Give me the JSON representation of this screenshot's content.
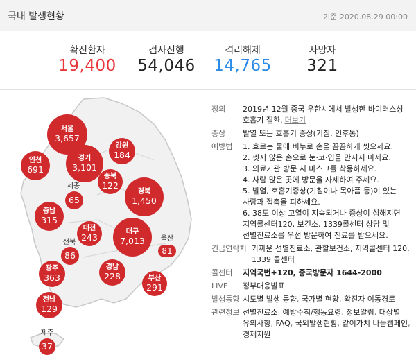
{
  "header": {
    "title": "국내 발생현황",
    "date": "기준 2020.08.29 00:00"
  },
  "stats": [
    {
      "label": "확진환자",
      "value": "19,400"
    },
    {
      "label": "검사진행",
      "value": "54,046"
    },
    {
      "label": "격리해제",
      "value": "14,765"
    },
    {
      "label": "사망자",
      "value": "321"
    }
  ],
  "regions": {
    "seoul": {
      "name": "서울",
      "count": "3,657"
    },
    "incheon": {
      "name": "인천",
      "count": "691"
    },
    "gyeonggi": {
      "name": "경기",
      "count": "3,101"
    },
    "gangwon": {
      "name": "강원",
      "count": "184"
    },
    "chungbuk": {
      "name": "충북",
      "count": "122"
    },
    "sejong": {
      "name": "세종",
      "count": "65"
    },
    "chungnam": {
      "name": "충남",
      "count": "315"
    },
    "gyeongbuk": {
      "name": "경북",
      "count": "1,450"
    },
    "daejeon": {
      "name": "대전",
      "count": "243"
    },
    "daegu": {
      "name": "대구",
      "count": "7,013"
    },
    "jeonbuk": {
      "name": "전북",
      "count": "86"
    },
    "ulsan": {
      "name": "울산",
      "count": "81"
    },
    "gwangju": {
      "name": "광주",
      "count": "363"
    },
    "gyeongnam": {
      "name": "경남",
      "count": "228"
    },
    "busan": {
      "name": "부산",
      "count": "291"
    },
    "jeonnam": {
      "name": "전남",
      "count": "129"
    },
    "jeju": {
      "name": "제주",
      "count": "37"
    }
  },
  "info": {
    "definition": {
      "key": "정의",
      "text": "2019년 12월 중국 우한시에서 발생한 바이러스성 호흡기 질환.",
      "link": "더보기"
    },
    "symptoms": {
      "key": "증상",
      "text": "발열 또는 호흡기 증상(기침, 인후통)"
    },
    "prevention": {
      "key": "예방법",
      "items": [
        "1. 흐르는 물에 비누로 손을 꼼꼼하게 씻으세요.",
        "2. 씻지 않은 손으로 눈·코·입을 만지지 마세요.",
        "3. 의료기관 방문 시 마스크를 착용하세요.",
        "4. 사람 많은 곳에 방문을 자제하여 주세요.",
        "5. 발열, 호흡기증상(기침이나 목아픔 등)이 있는 사람과 접촉을 피하세요.",
        "6. 38도 이상 고열이 지속되거나 증상이 심해지면 지역콜센터120, 보건소, 1339콜센터 상담 및 선별진료소를 우선 방문하여 진료를 받으세요."
      ]
    },
    "emergency": {
      "key": "긴급연락처",
      "text": "가까운 선별진료소, 관할보건소, 지역콜센터 120, 1339 콜센터"
    },
    "callcenter": {
      "key": "콜센터",
      "text": "지역국번+120, 중국방문자 1644-2000"
    },
    "live": {
      "key": "LIVE",
      "text": "정부대응발표"
    },
    "trends": {
      "key": "발생동향",
      "links": [
        "시도별 발생 동향",
        "국가별 현황",
        "확진자 이동경로"
      ]
    },
    "related": {
      "key": "관련정보",
      "links": [
        "선별진료소",
        "예방수칙/행동요령",
        "정보알림",
        "대상별 유의사항",
        "FAQ",
        "국외발생현황",
        "같이가치 나눔캠페인",
        "경제지원"
      ]
    }
  }
}
